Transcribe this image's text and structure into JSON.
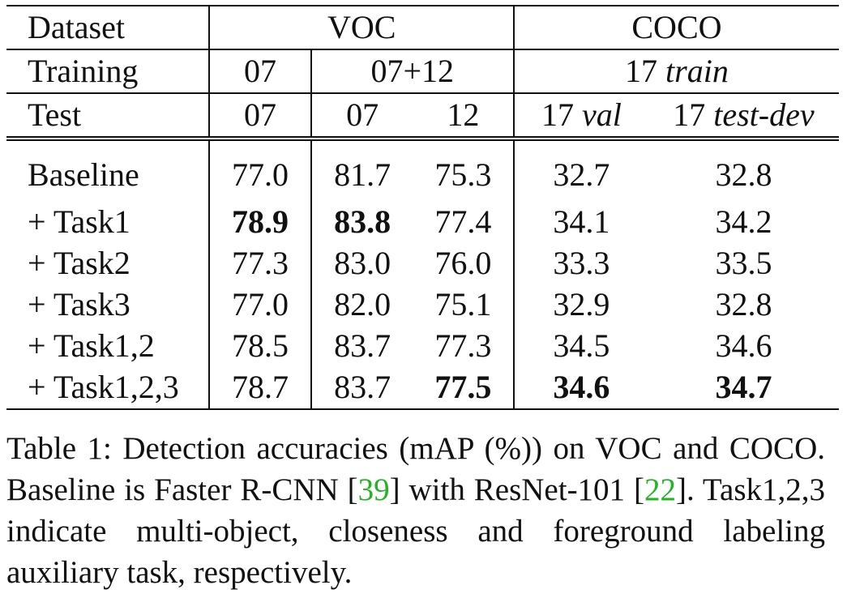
{
  "table": {
    "header": {
      "row1": {
        "label": "Dataset",
        "voc": "VOC",
        "coco": "COCO"
      },
      "row2": {
        "label": "Training",
        "voc07": "07",
        "voc0712": "07+12",
        "coco_num": "17",
        "coco_italic": "train"
      },
      "row3": {
        "label": "Test",
        "c1": "07",
        "c2": "07",
        "c3": "12",
        "c4_num": "17",
        "c4_italic": "val",
        "c5_num": "17",
        "c5_italic": "test-dev"
      }
    },
    "rows": [
      {
        "label": "Baseline",
        "values": [
          "77.0",
          "81.7",
          "75.3",
          "32.7",
          "32.8"
        ]
      },
      {
        "label": "+ Task1",
        "values": [
          "78.9",
          "83.8",
          "77.4",
          "34.1",
          "34.2"
        ]
      },
      {
        "label": "+ Task2",
        "values": [
          "77.3",
          "83.0",
          "76.0",
          "33.3",
          "33.5"
        ]
      },
      {
        "label": "+ Task3",
        "values": [
          "77.0",
          "82.0",
          "75.1",
          "32.9",
          "32.8"
        ]
      },
      {
        "label": "+ Task1,2",
        "values": [
          "78.5",
          "83.7",
          "77.3",
          "34.5",
          "34.6"
        ]
      },
      {
        "label": "+ Task1,2,3",
        "values": [
          "78.7",
          "83.7",
          "77.5",
          "34.6",
          "34.7"
        ]
      }
    ]
  },
  "caption": {
    "part1": "Table 1: Detection accuracies (mAP (%)) on VOC and COCO. Baseline is Faster R-CNN [",
    "cite1": "39",
    "part2": "] with ResNet-101 [",
    "cite2": "22",
    "part3": "]. Task1,2,3 indicate multi-object, closeness and foreground labeling auxiliary task, respectively."
  }
}
